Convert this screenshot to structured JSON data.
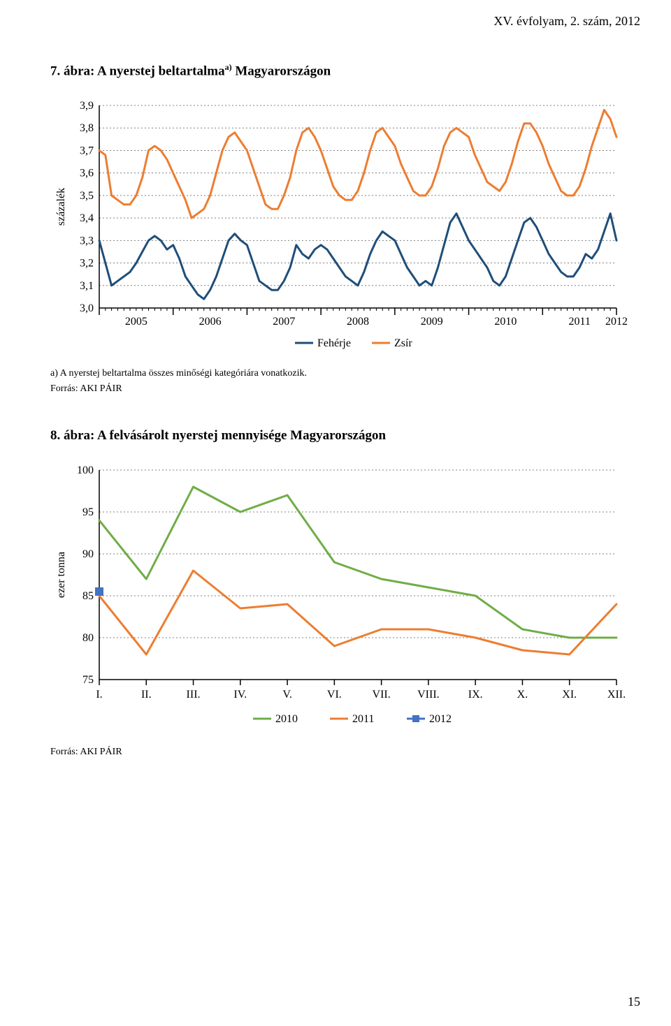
{
  "page": {
    "header_right": "XV. évfolyam, 2. szám, 2012",
    "page_number": "15"
  },
  "fig7": {
    "title_prefix": "7. ábra: ",
    "title_main": "A nyerstej beltartalma",
    "title_sup": "a)",
    "title_suffix": " Magyarországon",
    "type": "line",
    "y_axis_label": "százalék",
    "y_ticks": [
      "3,0",
      "3,1",
      "3,2",
      "3,3",
      "3,4",
      "3,5",
      "3,6",
      "3,7",
      "3,8",
      "3,9"
    ],
    "ylim": [
      3.0,
      3.9
    ],
    "x_years": [
      "2005",
      "2006",
      "2007",
      "2008",
      "2009",
      "2010",
      "2011",
      "2012"
    ],
    "series": [
      {
        "name": "Fehérje",
        "color": "#1f4e79",
        "values": [
          3.3,
          3.2,
          3.1,
          3.12,
          3.14,
          3.16,
          3.2,
          3.25,
          3.3,
          3.32,
          3.3,
          3.26,
          3.28,
          3.22,
          3.14,
          3.1,
          3.06,
          3.04,
          3.08,
          3.14,
          3.22,
          3.3,
          3.33,
          3.3,
          3.28,
          3.2,
          3.12,
          3.1,
          3.08,
          3.08,
          3.12,
          3.18,
          3.28,
          3.24,
          3.22,
          3.26,
          3.28,
          3.26,
          3.22,
          3.18,
          3.14,
          3.12,
          3.1,
          3.16,
          3.24,
          3.3,
          3.34,
          3.32,
          3.3,
          3.24,
          3.18,
          3.14,
          3.1,
          3.12,
          3.1,
          3.18,
          3.28,
          3.38,
          3.42,
          3.36,
          3.3,
          3.26,
          3.22,
          3.18,
          3.12,
          3.1,
          3.14,
          3.22,
          3.3,
          3.38,
          3.4,
          3.36,
          3.3,
          3.24,
          3.2,
          3.16,
          3.14,
          3.14,
          3.18,
          3.24,
          3.22,
          3.26,
          3.34,
          3.42,
          3.3
        ]
      },
      {
        "name": "Zsír",
        "color": "#ed7d31",
        "values": [
          3.7,
          3.68,
          3.5,
          3.48,
          3.46,
          3.46,
          3.5,
          3.58,
          3.7,
          3.72,
          3.7,
          3.66,
          3.6,
          3.54,
          3.48,
          3.4,
          3.42,
          3.44,
          3.5,
          3.6,
          3.7,
          3.76,
          3.78,
          3.74,
          3.7,
          3.62,
          3.54,
          3.46,
          3.44,
          3.44,
          3.5,
          3.58,
          3.7,
          3.78,
          3.8,
          3.76,
          3.7,
          3.62,
          3.54,
          3.5,
          3.48,
          3.48,
          3.52,
          3.6,
          3.7,
          3.78,
          3.8,
          3.76,
          3.72,
          3.64,
          3.58,
          3.52,
          3.5,
          3.5,
          3.54,
          3.62,
          3.72,
          3.78,
          3.8,
          3.78,
          3.76,
          3.68,
          3.62,
          3.56,
          3.54,
          3.52,
          3.56,
          3.64,
          3.74,
          3.82,
          3.82,
          3.78,
          3.72,
          3.64,
          3.58,
          3.52,
          3.5,
          3.5,
          3.54,
          3.62,
          3.72,
          3.8,
          3.88,
          3.84,
          3.76
        ]
      }
    ],
    "legend_items": [
      {
        "label": "Fehérje",
        "color": "#1f4e79"
      },
      {
        "label": "Zsír",
        "color": "#ed7d31"
      }
    ],
    "grid_color": "#808080",
    "axis_color": "#000000",
    "line_width": 3,
    "tick_fontsize": 16,
    "label_fontsize": 16,
    "footnote": "a) A nyerstej beltartalma összes minőségi kategóriára vonatkozik.",
    "source": "Forrás: AKI PÁIR"
  },
  "fig8": {
    "title_prefix": "8. ábra: ",
    "title_main": "A felvásárolt nyerstej mennyisége Magyarországon",
    "type": "line",
    "y_axis_label": "ezer tonna",
    "y_ticks": [
      "75",
      "80",
      "85",
      "90",
      "95",
      "100"
    ],
    "ylim": [
      75,
      100
    ],
    "x_labels": [
      "I.",
      "II.",
      "III.",
      "IV.",
      "V.",
      "VI.",
      "VII.",
      "VIII.",
      "IX.",
      "X.",
      "XI.",
      "XII."
    ],
    "series": [
      {
        "name": "2010",
        "color": "#70ad47",
        "values": [
          94,
          87,
          98,
          95,
          97,
          89,
          87,
          86,
          85,
          81,
          80,
          80
        ]
      },
      {
        "name": "2011",
        "color": "#ed7d31",
        "values": [
          85,
          78,
          88,
          83.5,
          84,
          79,
          81,
          81,
          80,
          78.5,
          78,
          84
        ]
      },
      {
        "name": "2012",
        "color": "#4472c4",
        "values": [
          85.5
        ]
      }
    ],
    "legend_items": [
      {
        "label": "2010",
        "color": "#70ad47",
        "marker": "none"
      },
      {
        "label": "2011",
        "color": "#ed7d31",
        "marker": "none"
      },
      {
        "label": "2012",
        "color": "#4472c4",
        "marker": "square"
      }
    ],
    "grid_color": "#808080",
    "axis_color": "#000000",
    "line_width": 3,
    "tick_fontsize": 16,
    "label_fontsize": 16,
    "source": "Forrás: AKI PÁIR"
  }
}
